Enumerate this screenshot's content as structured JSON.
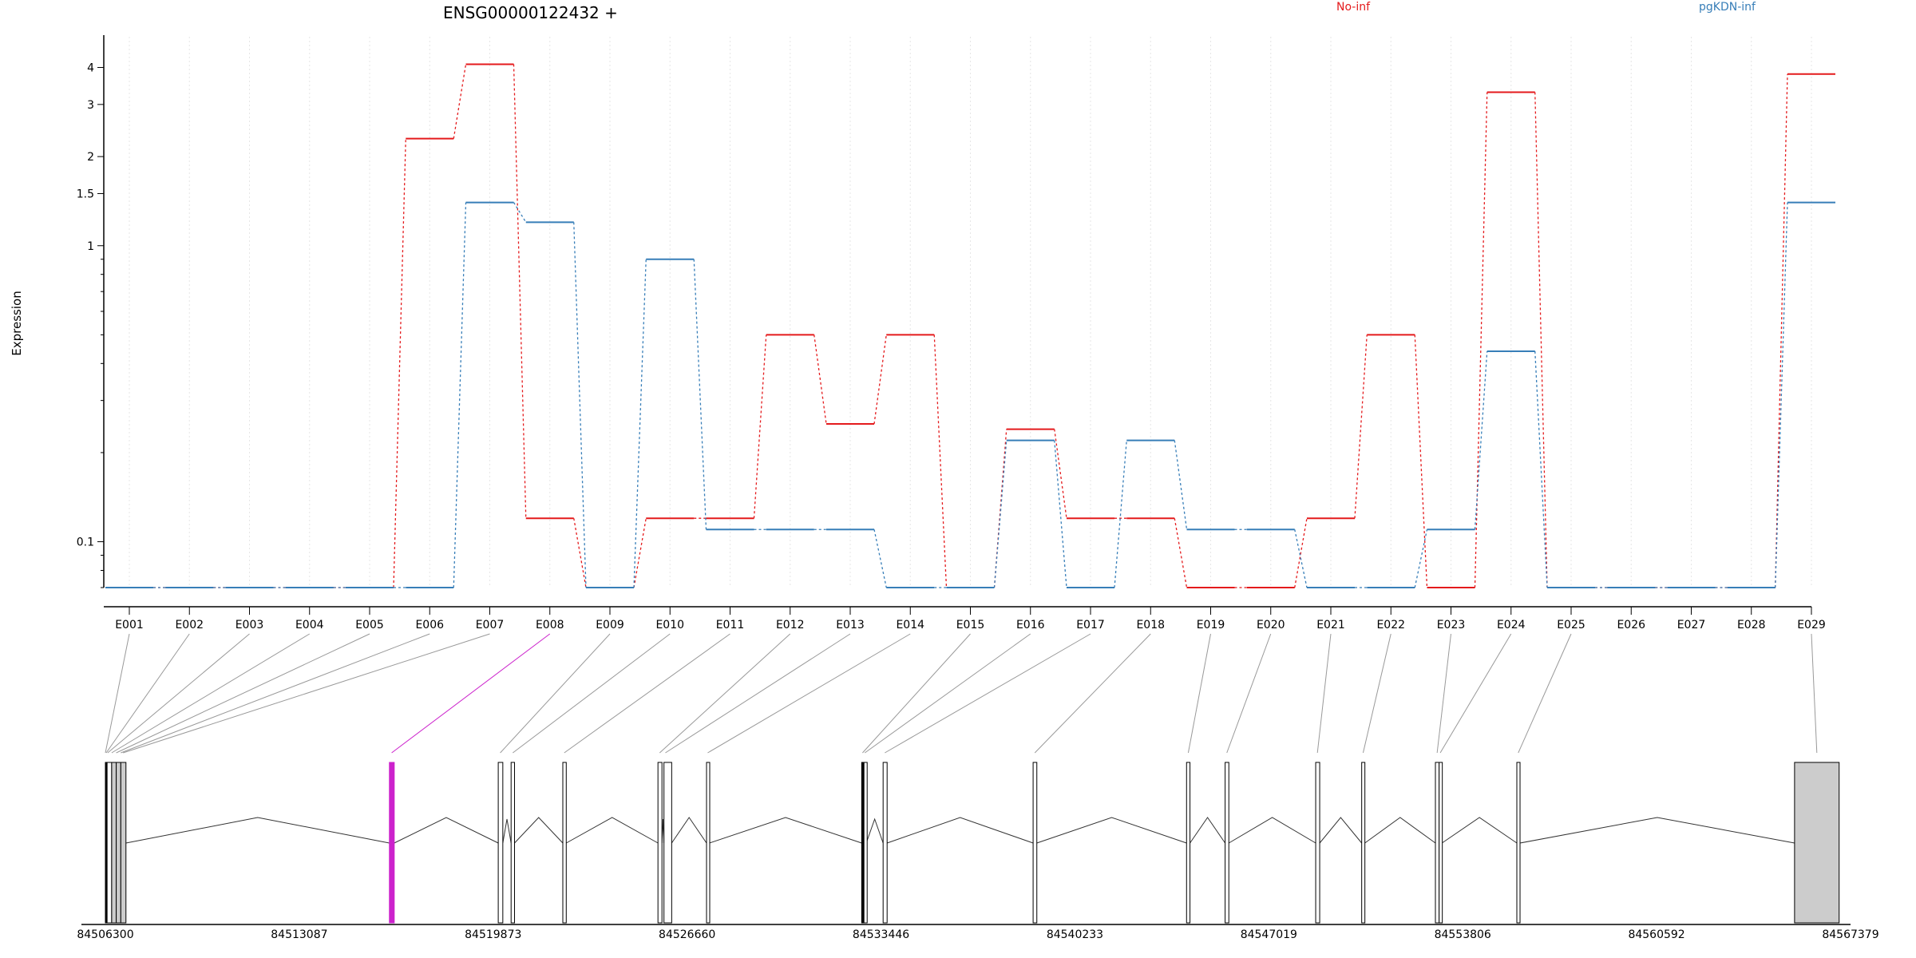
{
  "chart_data": {
    "type": "line",
    "title": "ENSG00000122432 +",
    "ylabel": "Expression",
    "xlabel": "",
    "y_scale": "log",
    "ylim": [
      0.07,
      4.6
    ],
    "y_ticks": [
      0.1,
      1,
      1.5,
      2,
      3,
      4
    ],
    "y_tick_labels": [
      "0.1",
      "1",
      "1.5",
      "2",
      "3",
      "4"
    ],
    "grid": false,
    "legend_placement": "top-right",
    "categories": [
      "E001",
      "E002",
      "E003",
      "E004",
      "E005",
      "E006",
      "E007",
      "E008",
      "E009",
      "E010",
      "E011",
      "E012",
      "E013",
      "E014",
      "E015",
      "E016",
      "E017",
      "E018",
      "E019",
      "E020",
      "E021",
      "E022",
      "E023",
      "E024",
      "E025",
      "E026",
      "E027",
      "E028",
      "E029"
    ],
    "series": [
      {
        "name": "No-inf",
        "color": "#e41a1c",
        "values": [
          0.07,
          0.07,
          0.07,
          0.07,
          0.07,
          2.3,
          4.1,
          0.12,
          0.07,
          0.12,
          0.12,
          0.5,
          0.25,
          0.5,
          0.07,
          0.24,
          0.12,
          0.12,
          0.07,
          0.07,
          0.12,
          0.5,
          0.07,
          3.3,
          0.07,
          0.07,
          0.07,
          0.07,
          3.8
        ]
      },
      {
        "name": "pgKDN-inf",
        "color": "#377eb8",
        "values": [
          0.07,
          0.07,
          0.07,
          0.07,
          0.07,
          0.07,
          1.4,
          1.2,
          0.07,
          0.9,
          0.11,
          0.11,
          0.11,
          0.07,
          0.07,
          0.22,
          0.07,
          0.22,
          0.11,
          0.11,
          0.07,
          0.07,
          0.11,
          0.44,
          0.07,
          0.07,
          0.07,
          0.07,
          1.4
        ]
      }
    ],
    "gene_model": {
      "coordinate_ticks": [
        "84506300",
        "84513087",
        "84519873",
        "84526660",
        "84533446",
        "84540233",
        "84547019",
        "84553806",
        "84560592",
        "84567379"
      ],
      "highlighted_exon": "E008",
      "exon_fill": "#cccccc",
      "highlight_color": "#cc22cc",
      "exon_blocks": [
        {
          "exon": "E001",
          "start": 84506300,
          "end": 84506330,
          "fill": "#000000"
        },
        {
          "exon": "E002",
          "start": 84506330,
          "end": 84506360,
          "fill": "#000000"
        },
        {
          "exon": "E003",
          "start": 84506360,
          "end": 84506520,
          "fill": "#ffffff"
        },
        {
          "exon": "E004",
          "start": 84506520,
          "end": 84506680,
          "fill": "#cccccc"
        },
        {
          "exon": "E005",
          "start": 84506680,
          "end": 84506840,
          "fill": "#cccccc"
        },
        {
          "exon": "E006",
          "start": 84506840,
          "end": 84507020,
          "fill": "#cccccc"
        },
        {
          "exon": "E008",
          "start": 84516240,
          "end": 84516410,
          "fill": "#cccc00"
        },
        {
          "exon": "E009",
          "start": 84520050,
          "end": 84520210,
          "fill": "#ffffff"
        },
        {
          "exon": "E010",
          "start": 84520500,
          "end": 84520620,
          "fill": "#ffffff"
        },
        {
          "exon": "E011",
          "start": 84522310,
          "end": 84522430,
          "fill": "#ffffff"
        },
        {
          "exon": "E012",
          "start": 84525640,
          "end": 84525780,
          "fill": "#ffffff"
        },
        {
          "exon": "E013",
          "start": 84525850,
          "end": 84526120,
          "fill": "#ffffff"
        },
        {
          "exon": "E014",
          "start": 84527340,
          "end": 84527440,
          "fill": "#ffffff"
        },
        {
          "exon": "E015",
          "start": 84532770,
          "end": 84532850,
          "fill": "#000000"
        },
        {
          "exon": "E016",
          "start": 84532850,
          "end": 84532930,
          "fill": "#ffffff"
        },
        {
          "exon": "E017",
          "start": 84533520,
          "end": 84533660,
          "fill": "#ffffff"
        },
        {
          "exon": "E018",
          "start": 84538770,
          "end": 84538900,
          "fill": "#ffffff"
        },
        {
          "exon": "E019",
          "start": 84544140,
          "end": 84544260,
          "fill": "#ffffff"
        },
        {
          "exon": "E020",
          "start": 84545490,
          "end": 84545620,
          "fill": "#ffffff"
        },
        {
          "exon": "E021",
          "start": 84548660,
          "end": 84548800,
          "fill": "#ffffff"
        },
        {
          "exon": "E022",
          "start": 84550270,
          "end": 84550380,
          "fill": "#ffffff"
        },
        {
          "exon": "E023",
          "start": 84552850,
          "end": 84552980,
          "fill": "#ffffff"
        },
        {
          "exon": "E024",
          "start": 84552980,
          "end": 84553080,
          "fill": "#ffffff"
        },
        {
          "exon": "E025",
          "start": 84555700,
          "end": 84555810,
          "fill": "#ffffff"
        },
        {
          "exon": "E029",
          "start": 84565420,
          "end": 84566980,
          "fill": "#cccccc"
        }
      ],
      "exon_to_model_map": [
        [
          "E001",
          84506300
        ],
        [
          "E002",
          84506330
        ],
        [
          "E003",
          84506380
        ],
        [
          "E004",
          84506520
        ],
        [
          "E005",
          84506680
        ],
        [
          "E006",
          84506840
        ],
        [
          "E007",
          84506920
        ],
        [
          "E008",
          84516320
        ],
        [
          "E009",
          84520120
        ],
        [
          "E010",
          84520560
        ],
        [
          "E011",
          84522360
        ],
        [
          "E012",
          84525700
        ],
        [
          "E013",
          84525900
        ],
        [
          "E014",
          84527380
        ],
        [
          "E015",
          84532800
        ],
        [
          "E016",
          84532880
        ],
        [
          "E017",
          84533580
        ],
        [
          "E018",
          84538830
        ],
        [
          "E019",
          84544200
        ],
        [
          "E020",
          84545550
        ],
        [
          "E021",
          84548720
        ],
        [
          "E022",
          84550320
        ],
        [
          "E023",
          84552910
        ],
        [
          "E024",
          84553020
        ],
        [
          "E025",
          84555750
        ],
        [
          "E029",
          84566200
        ]
      ]
    }
  }
}
